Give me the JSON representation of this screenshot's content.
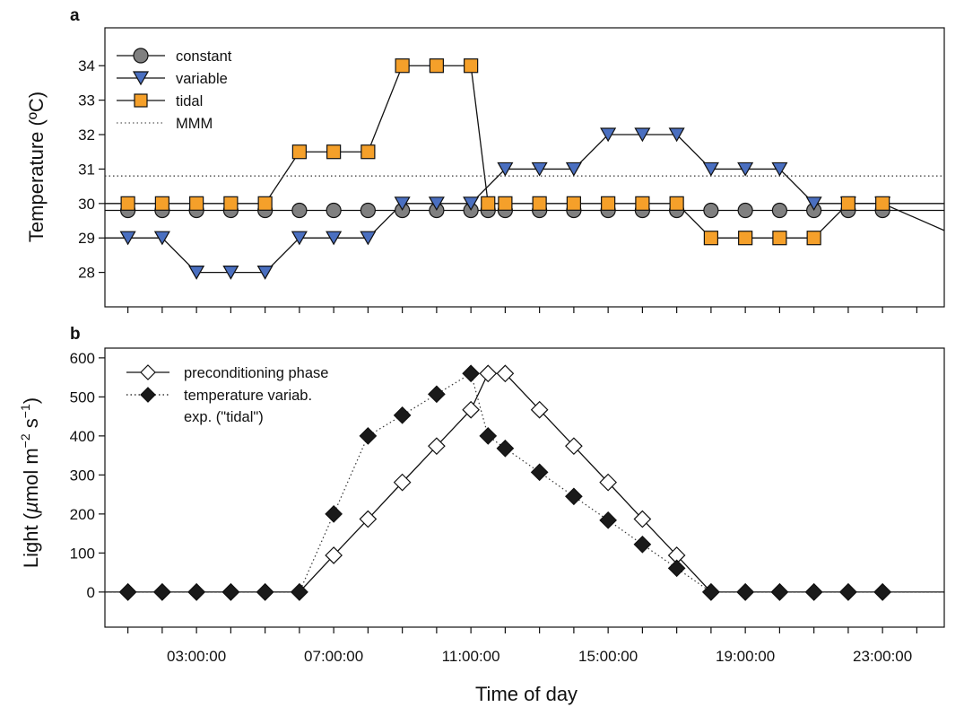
{
  "xlabel": "Time of day",
  "x_ticks": [
    "03:00:00",
    "07:00:00",
    "11:00:00",
    "15:00:00",
    "19:00:00",
    "23:00:00"
  ],
  "chart_data": [
    {
      "panel": "a",
      "type": "line",
      "ylabel": "Temperature (ºC)",
      "xlabel": "",
      "xlim": [
        0.33,
        24.8
      ],
      "ylim": [
        27,
        35.1
      ],
      "y_ticks": [
        28,
        29,
        30,
        31,
        32,
        33,
        34
      ],
      "legend": "top-left",
      "series": [
        {
          "name": "constant",
          "marker": "circle",
          "color": "#808080",
          "line": "solid",
          "x": [
            1,
            2,
            3,
            4,
            5,
            6,
            7,
            8,
            9,
            10,
            11,
            11.5,
            12,
            13,
            14,
            15,
            16,
            17,
            18,
            19,
            20,
            21,
            22,
            23
          ],
          "y": [
            29.8,
            29.8,
            29.8,
            29.8,
            29.8,
            29.8,
            29.8,
            29.8,
            29.8,
            29.8,
            29.8,
            29.8,
            29.8,
            29.8,
            29.8,
            29.8,
            29.8,
            29.8,
            29.8,
            29.8,
            29.8,
            29.8,
            29.8,
            29.8
          ]
        },
        {
          "name": "variable",
          "marker": "triangle-down",
          "color": "#4a6fc0",
          "line": "solid",
          "x": [
            1,
            2,
            3,
            4,
            5,
            6,
            7,
            8,
            9,
            10,
            11,
            12,
            13,
            14,
            15,
            16,
            17,
            18,
            19,
            20,
            21,
            22,
            23
          ],
          "y": [
            29,
            29,
            28,
            28,
            28,
            29,
            29,
            29,
            30,
            30,
            30,
            31,
            31,
            31,
            32,
            32,
            32,
            31,
            31,
            31,
            30,
            30,
            30
          ]
        },
        {
          "name": "tidal",
          "marker": "square",
          "color": "#f5a02a",
          "line": "solid",
          "x": [
            1,
            2,
            3,
            4,
            5,
            6,
            7,
            8,
            9,
            10,
            11,
            11.5,
            12,
            13,
            14,
            15,
            16,
            17,
            18,
            19,
            20,
            21,
            22,
            23
          ],
          "y": [
            30,
            30,
            30,
            30,
            30,
            31.5,
            31.5,
            31.5,
            34,
            34,
            34,
            30,
            30,
            30,
            30,
            30,
            30,
            30,
            29,
            29,
            29,
            29,
            30,
            30
          ]
        },
        {
          "name": "MMM",
          "marker": "none",
          "color": "#333333",
          "line": "dotted",
          "x": [
            0.33,
            24.8
          ],
          "y": [
            30.8,
            30.8
          ]
        }
      ]
    },
    {
      "panel": "b",
      "type": "line",
      "ylabel": "Light (µmol m-2 s-1)",
      "xlabel": "Time of day",
      "xlim": [
        0.33,
        24.8
      ],
      "ylim": [
        -90,
        625
      ],
      "y_ticks": [
        0,
        100,
        200,
        300,
        400,
        500,
        600
      ],
      "legend": "top-left",
      "series": [
        {
          "name": "preconditioning phase",
          "marker": "diamond-open",
          "color": "#ffffff",
          "line": "solid",
          "x": [
            1,
            2,
            3,
            4,
            5,
            6,
            7,
            8,
            9,
            10,
            11,
            11.5,
            12,
            13,
            14,
            15,
            16,
            17,
            18,
            19,
            20,
            21,
            22,
            23
          ],
          "y": [
            0,
            0,
            0,
            0,
            0,
            0,
            94,
            187,
            281,
            374,
            467,
            560,
            560,
            467,
            374,
            281,
            187,
            94,
            0,
            0,
            0,
            0,
            0,
            0
          ]
        },
        {
          "name": "temperature variab. exp. (\"tidal\")",
          "marker": "diamond-filled",
          "color": "#1a1a1a",
          "line": "dotted",
          "x": [
            1,
            2,
            3,
            4,
            5,
            6,
            7,
            8,
            9,
            10,
            11,
            11.5,
            12,
            13,
            14,
            15,
            16,
            17,
            18,
            19,
            20,
            21,
            22,
            23
          ],
          "y": [
            0,
            0,
            0,
            0,
            0,
            0,
            200,
            400,
            453,
            507,
            560,
            400,
            368,
            307,
            245,
            184,
            122,
            61,
            0,
            0,
            0,
            0,
            0,
            0
          ]
        }
      ],
      "legend_lines": [
        "preconditioning phase",
        "temperature variab.",
        "exp. (\"tidal\")"
      ]
    }
  ]
}
